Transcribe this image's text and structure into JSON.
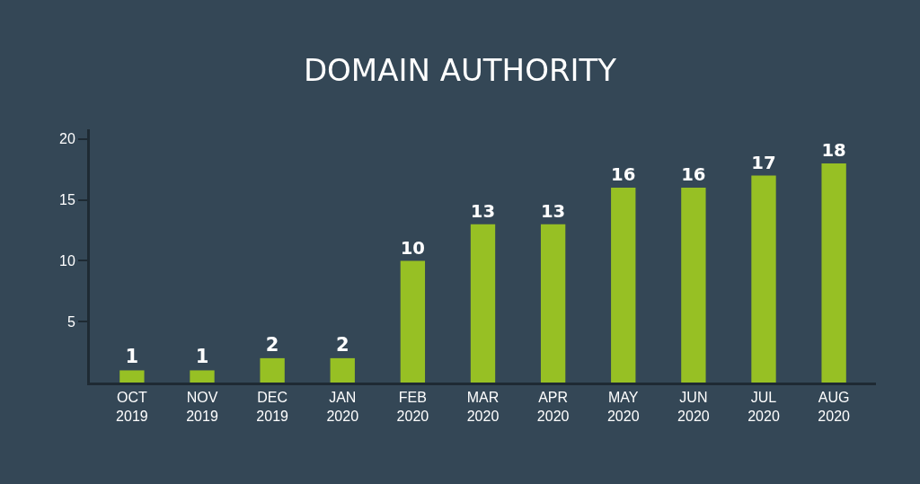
{
  "chart_data": {
    "type": "bar",
    "title": "DOMAIN AUTHORITY",
    "categories": [
      "OCT\n2019",
      "NOV\n2019",
      "DEC\n2019",
      "JAN\n2020",
      "FEB\n2020",
      "MAR\n2020",
      "APR\n2020",
      "MAY\n2020",
      "JUN\n2020",
      "JUL\n2020",
      "AUG\n2020"
    ],
    "values": [
      1,
      1,
      2,
      2,
      10,
      13,
      13,
      16,
      16,
      17,
      18
    ],
    "color": "#97c024",
    "ylim": [
      0,
      20.8
    ],
    "yticks": [
      5,
      10,
      15,
      20
    ],
    "grid": false,
    "data_labels": true
  }
}
